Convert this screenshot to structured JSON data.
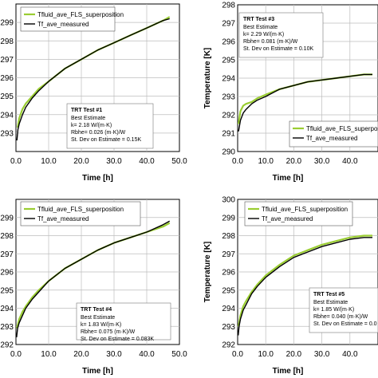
{
  "chart_data": [
    {
      "type": "line",
      "panel": "top-left",
      "xlabel": "Time [h]",
      "ylabel": "",
      "xlim": [
        0,
        50
      ],
      "ylim": [
        292,
        300
      ],
      "xticks": [
        "0.0",
        "10.0",
        "20.0",
        "30.0",
        "40.0",
        "50.0"
      ],
      "yticks": [
        "293",
        "294",
        "295",
        "296",
        "297",
        "298",
        "299"
      ],
      "grid": true,
      "legend_position": "top-left",
      "series": [
        {
          "name": "Tfluid_ave_FLS_superposition",
          "color": "#9acd32",
          "x": [
            0.5,
            1,
            2,
            3,
            5,
            7,
            10,
            15,
            20,
            25,
            30,
            35,
            40,
            45,
            47
          ],
          "y": [
            293.3,
            293.8,
            294.3,
            294.6,
            295.0,
            295.4,
            295.8,
            296.5,
            297.0,
            297.5,
            297.9,
            298.3,
            298.7,
            299.1,
            299.3
          ]
        },
        {
          "name": "Tf_ave_measured",
          "color": "#000000",
          "x": [
            0.3,
            0.6,
            1,
            2,
            3,
            5,
            7,
            10,
            15,
            20,
            25,
            30,
            35,
            40,
            45,
            47
          ],
          "y": [
            292.6,
            293.2,
            293.5,
            294.0,
            294.4,
            294.9,
            295.3,
            295.8,
            296.5,
            297.0,
            297.5,
            297.9,
            298.3,
            298.7,
            299.1,
            299.2
          ]
        }
      ],
      "annotation": {
        "title": "TRT Test #1",
        "lines": [
          "Best Estimate",
          "k= 2.18 W/(m·K)",
          "Rbhe= 0.026 (m·K)/W",
          "St. Dev on Estimate = 0.15K"
        ]
      }
    },
    {
      "type": "line",
      "panel": "top-right",
      "xlabel": "Time [h]",
      "ylabel": "Temperature [K]",
      "xlim": [
        0,
        50
      ],
      "ylim": [
        290,
        298
      ],
      "xticks": [
        "0.0",
        "10.0",
        "20.0",
        "30.0",
        "40.0"
      ],
      "yticks": [
        "290",
        "291",
        "292",
        "293",
        "294",
        "295",
        "296",
        "297",
        "298"
      ],
      "grid": true,
      "legend_position": "bottom-right",
      "series": [
        {
          "name": "Tfluid_ave_FLS_superposition",
          "color": "#9acd32",
          "x": [
            0.3,
            1,
            2,
            3,
            5,
            7,
            10,
            15,
            20,
            25,
            30,
            35,
            40,
            45,
            48
          ],
          "y": [
            291.5,
            292.2,
            292.5,
            292.6,
            292.7,
            292.9,
            293.1,
            293.4,
            293.6,
            293.8,
            293.9,
            294.0,
            294.1,
            294.2,
            294.2
          ]
        },
        {
          "name": "Tf_ave_measured",
          "color": "#000000",
          "x": [
            0.3,
            1,
            2,
            3,
            5,
            7,
            10,
            15,
            20,
            25,
            30,
            35,
            40,
            45,
            48
          ],
          "y": [
            291.1,
            291.7,
            292.1,
            292.3,
            292.6,
            292.8,
            293.0,
            293.4,
            293.6,
            293.8,
            293.9,
            294.0,
            294.1,
            294.2,
            294.2
          ]
        }
      ],
      "annotation": {
        "title": "TRT Test #3",
        "lines": [
          "Best Estimate",
          "k= 2.29 W/(m·K)",
          "Rbhe= 0.081 (m·K)/W",
          "St. Dev on Estimate = 0.10K"
        ]
      }
    },
    {
      "type": "line",
      "panel": "bottom-left",
      "xlabel": "Time [h]",
      "ylabel": "",
      "xlim": [
        0,
        50
      ],
      "ylim": [
        292,
        300
      ],
      "xticks": [
        "0.0",
        "10.0",
        "20.0",
        "30.0",
        "40.0",
        "50.0"
      ],
      "yticks": [
        "292",
        "293",
        "294",
        "295",
        "296",
        "297",
        "298",
        "299"
      ],
      "grid": true,
      "legend_position": "top-left",
      "series": [
        {
          "name": "Tfluid_ave_FLS_superposition",
          "color": "#9acd32",
          "x": [
            0.3,
            1,
            2,
            3,
            5,
            7,
            10,
            15,
            20,
            25,
            30,
            35,
            40,
            45,
            47
          ],
          "y": [
            292.9,
            293.4,
            293.8,
            294.1,
            294.6,
            295.0,
            295.5,
            296.2,
            296.7,
            297.2,
            297.6,
            297.9,
            298.2,
            298.5,
            298.7
          ]
        },
        {
          "name": "Tf_ave_measured",
          "color": "#000000",
          "x": [
            0.2,
            0.5,
            1,
            2,
            3,
            5,
            7,
            10,
            15,
            20,
            25,
            30,
            35,
            40,
            45,
            47
          ],
          "y": [
            292.4,
            292.9,
            293.2,
            293.6,
            294.0,
            294.5,
            294.9,
            295.5,
            296.2,
            296.7,
            297.2,
            297.6,
            297.9,
            298.2,
            298.6,
            298.8
          ]
        }
      ],
      "annotation": {
        "title": "TRT Test #4",
        "lines": [
          "Best Estimate",
          "k= 1.83 W/(m·K)",
          "Rbhe= 0.075 (m·K)/W",
          "St. Dev on Estimate = 0.083K"
        ]
      }
    },
    {
      "type": "line",
      "panel": "bottom-right",
      "xlabel": "Time [h]",
      "ylabel": "Temperature [K]",
      "xlim": [
        0,
        50
      ],
      "ylim": [
        292,
        300
      ],
      "xticks": [
        "0.0",
        "10.0",
        "20.0",
        "30.0",
        "40.0"
      ],
      "yticks": [
        "292",
        "293",
        "294",
        "295",
        "296",
        "297",
        "298",
        "299",
        "300"
      ],
      "grid": true,
      "legend_position": "top-left",
      "series": [
        {
          "name": "Tfluid_ave_FLS_superposition",
          "color": "#9acd32",
          "x": [
            0.3,
            1,
            2,
            3,
            5,
            7,
            10,
            15,
            20,
            25,
            30,
            35,
            40,
            45,
            48
          ],
          "y": [
            293.0,
            293.6,
            294.1,
            294.4,
            294.9,
            295.3,
            295.8,
            296.4,
            296.9,
            297.2,
            297.5,
            297.7,
            297.9,
            298.0,
            298.0
          ]
        },
        {
          "name": "Tf_ave_measured",
          "color": "#000000",
          "x": [
            0.2,
            0.5,
            1,
            2,
            3,
            5,
            7,
            10,
            15,
            20,
            25,
            30,
            35,
            40,
            45,
            48
          ],
          "y": [
            292.5,
            293.0,
            293.4,
            293.9,
            294.2,
            294.8,
            295.2,
            295.7,
            296.3,
            296.8,
            297.1,
            297.4,
            297.6,
            297.8,
            297.9,
            297.9
          ]
        }
      ],
      "annotation": {
        "title": "TRT Test #5",
        "lines": [
          "Best Estimate",
          "k= 1.85 W/(m·K)",
          "Rbhe= 0.040 (m·K)/W",
          "St. Dev on Estimate = 0.0"
        ]
      }
    }
  ]
}
